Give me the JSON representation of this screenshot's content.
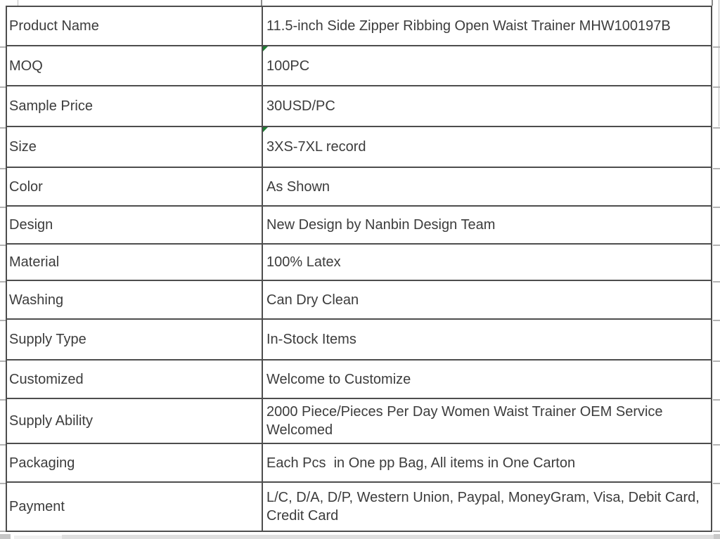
{
  "table": {
    "rows": [
      {
        "label": "Product Name",
        "value": "11.5-inch Side Zipper Ribbing Open Waist Trainer MHW100197B",
        "error_flag": false
      },
      {
        "label": "MOQ",
        "value": "100PC",
        "error_flag": true
      },
      {
        "label": "Sample Price",
        "value": "30USD/PC",
        "error_flag": false
      },
      {
        "label": "Size",
        "value": "3XS-7XL record",
        "error_flag": true
      },
      {
        "label": "Color",
        "value": "As Shown",
        "error_flag": false
      },
      {
        "label": "Design",
        "value": "New Design by Nanbin Design Team",
        "error_flag": false
      },
      {
        "label": "Material",
        "value": "100% Latex",
        "error_flag": false
      },
      {
        "label": "Washing",
        "value": "Can Dry Clean",
        "error_flag": false
      },
      {
        "label": "Supply Type",
        "value": "In-Stock Items",
        "error_flag": false
      },
      {
        "label": "Customized",
        "value": "Welcome to Customize",
        "error_flag": false
      },
      {
        "label": "Supply Ability",
        "value": "2000 Piece/Pieces Per Day Women Waist Trainer OEM Service Welcomed",
        "error_flag": false
      },
      {
        "label": "Packaging",
        "value": "Each Pcs  in One pp Bag, All items in One Carton",
        "error_flag": false
      },
      {
        "label": "Payment",
        "value": "L/C, D/A, D/P, Western Union, Paypal, MoneyGram, Visa, Debit Card, Credit Card",
        "error_flag": false
      }
    ]
  },
  "colors": {
    "text": "#3c3c3c",
    "table_border": "#4d4d4d",
    "gridline_gray": "#b3b3b3",
    "error_flag_green": "#1e7e34",
    "edge_strip_gray": "#dedede",
    "scroll_block_gray": "#c5c5c5"
  },
  "icons": {
    "error_flag": "error-flag-icon"
  }
}
